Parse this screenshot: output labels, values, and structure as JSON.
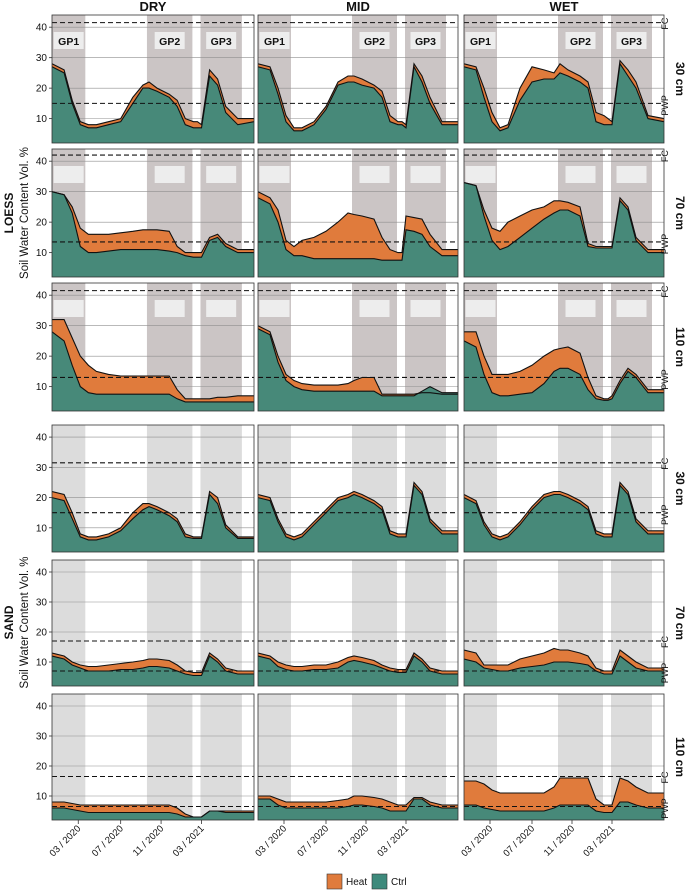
{
  "chart_data": {
    "type": "area",
    "ylabel": "Soil Water Content Vol. %",
    "columns": [
      "DRY",
      "MID",
      "WET"
    ],
    "soils": [
      {
        "name": "LOESS",
        "depths": [
          "30 cm",
          "70 cm",
          "110 cm"
        ]
      },
      {
        "name": "SAND",
        "depths": [
          "30 cm",
          "70 cm",
          "110 cm"
        ]
      }
    ],
    "x_ticks": [
      "03 / 2020",
      "07 / 2020",
      "11 / 2020",
      "03 / 2021"
    ],
    "y_ticks": [
      10,
      20,
      30,
      40
    ],
    "ylim": [
      2,
      44
    ],
    "grow_periods": [
      "GP1",
      "GP2",
      "GP3"
    ],
    "reference_labels": {
      "fc": "FC",
      "pwp": "PWP"
    },
    "legend": [
      {
        "name": "Heat",
        "color": "#e07b3c"
      },
      {
        "name": "Ctrl",
        "color": "#3e8a7c"
      }
    ],
    "reference_lines": {
      "LOESS": {
        "30 cm": {
          "fc": 41.5,
          "pwp": 15
        },
        "70 cm": {
          "fc": 42,
          "pwp": 13.5
        },
        "110 cm": {
          "fc": 41.5,
          "pwp": 13
        }
      },
      "SAND": {
        "30 cm": {
          "fc": 31.5,
          "pwp": 15
        },
        "70 cm": {
          "fc": 17,
          "pwp": 7
        },
        "110 cm": {
          "fc": 16.5,
          "pwp": 6.5
        }
      }
    },
    "time_points": [
      0,
      0.06,
      0.1,
      0.14,
      0.18,
      0.22,
      0.28,
      0.34,
      0.4,
      0.45,
      0.48,
      0.52,
      0.58,
      0.62,
      0.66,
      0.7,
      0.72,
      0.74,
      0.78,
      0.82,
      0.86,
      0.92,
      1.0
    ],
    "series": {
      "LOESS": {
        "30 cm": {
          "DRY": {
            "heat": [
              28,
              26,
              16,
              9,
              8,
              8,
              9,
              10,
              17,
              21,
              22,
              20,
              18,
              16,
              10,
              9,
              9,
              8,
              26,
              23,
              14,
              10,
              10
            ],
            "ctrl": [
              27,
              25,
              15,
              8,
              7,
              7,
              8,
              9,
              15,
              20,
              20,
              19,
              17,
              14,
              8,
              7,
              7,
              7,
              24,
              21,
              12,
              8,
              9
            ]
          },
          "MID": {
            "heat": [
              28,
              27,
              20,
              11,
              7,
              7,
              9,
              14,
              22,
              24,
              24,
              23,
              21,
              19,
              11,
              9,
              9,
              8,
              28,
              24,
              17,
              9,
              9
            ],
            "ctrl": [
              27,
              26,
              18,
              9,
              6,
              6,
              8,
              13,
              21,
              22,
              22,
              21,
              20,
              17,
              9,
              8,
              8,
              7,
              27,
              22,
              15,
              8,
              8
            ]
          },
          "WET": {
            "heat": [
              28,
              27,
              20,
              12,
              7,
              8,
              20,
              27,
              26,
              25,
              28,
              26,
              24,
              22,
              12,
              11,
              10,
              9,
              29,
              26,
              22,
              11,
              10
            ],
            "ctrl": [
              27,
              26,
              17,
              9,
              6,
              7,
              16,
              22,
              23,
              23,
              25,
              24,
              22,
              20,
              9,
              8,
              8,
              8,
              28,
              24,
              20,
              10,
              9
            ]
          }
        },
        "70 cm": {
          "DRY": {
            "heat": [
              30,
              29,
              25,
              18,
              16,
              16,
              16,
              16.5,
              17,
              17.5,
              17.5,
              17.5,
              17,
              12,
              10,
              10,
              10,
              10,
              15,
              16,
              13,
              11,
              11
            ],
            "ctrl": [
              30,
              29,
              23,
              12,
              10,
              10,
              10.5,
              11,
              11,
              11,
              11,
              11,
              10.5,
              10,
              9,
              8.5,
              8.5,
              8.5,
              14,
              15,
              12,
              10,
              10
            ]
          },
          "MID": {
            "heat": [
              30,
              28,
              24,
              14,
              12,
              14,
              15,
              17,
              20,
              23,
              22.5,
              22,
              21,
              15,
              11,
              10,
              10,
              22,
              21.5,
              21,
              16,
              11,
              11
            ],
            "ctrl": [
              28,
              26,
              20,
              11,
              9,
              9,
              8,
              8,
              8,
              8,
              8,
              8,
              8,
              7.5,
              7.5,
              7.5,
              7.5,
              17.5,
              17,
              16,
              12,
              9,
              9
            ]
          },
          "WET": {
            "heat": [
              33,
              32,
              24,
              18,
              17,
              20,
              22,
              24,
              25,
              27,
              27,
              26.5,
              25,
              13,
              12,
              12,
              12,
              12,
              28,
              25,
              15,
              11,
              11
            ],
            "ctrl": [
              33,
              32,
              22,
              14,
              11,
              12,
              15,
              18,
              21,
              23,
              24,
              24,
              22,
              12,
              11.5,
              11.5,
              11.5,
              11.5,
              27,
              24,
              14,
              10,
              10
            ]
          }
        },
        "110 cm": {
          "DRY": {
            "heat": [
              32,
              32,
              26,
              20,
              17,
              15,
              14,
              13.5,
              13.5,
              13.5,
              13.5,
              13.5,
              13.5,
              9,
              6,
              6,
              6,
              6,
              6,
              6.5,
              6.5,
              7,
              7
            ],
            "ctrl": [
              28,
              25,
              17,
              10,
              8,
              7.5,
              7.5,
              7.5,
              7.5,
              7.5,
              7.5,
              7.5,
              7.5,
              6,
              5,
              5,
              5,
              5,
              5,
              5,
              5,
              5,
              5
            ]
          },
          "MID": {
            "heat": [
              30,
              28,
              20,
              14,
              12,
              11,
              10.5,
              10.5,
              10.5,
              11,
              12,
              13,
              13,
              7.5,
              7.5,
              7.5,
              7.5,
              7.5,
              7.5,
              8,
              8,
              7.5,
              7.5
            ],
            "ctrl": [
              29,
              27,
              18,
              12,
              10,
              9,
              8.5,
              8.5,
              8.5,
              8.5,
              8.5,
              8.5,
              8.5,
              7,
              7,
              7,
              7,
              7,
              7,
              8.5,
              10,
              8,
              8
            ]
          },
          "WET": {
            "heat": [
              28,
              28,
              20,
              14,
              14,
              14,
              15,
              17,
              20,
              22,
              22.5,
              23,
              21,
              13,
              7,
              6,
              6,
              7,
              12,
              16,
              14,
              9,
              9
            ],
            "ctrl": [
              25,
              23,
              14,
              8,
              7,
              7,
              7.5,
              8,
              11,
              15,
              16,
              16,
              14,
              9,
              6,
              5.5,
              5.5,
              6,
              11,
              15,
              13,
              8,
              8
            ]
          }
        }
      },
      "SAND": {
        "30 cm": {
          "DRY": {
            "heat": [
              22,
              21,
              15,
              8,
              7,
              7,
              8,
              10,
              15,
              18,
              18,
              17,
              15,
              13,
              8,
              7,
              7,
              7,
              22,
              20,
              11,
              7,
              7
            ],
            "ctrl": [
              20,
              19,
              13,
              7,
              6,
              6,
              7,
              9,
              13,
              16,
              17,
              16,
              14,
              12,
              7,
              6.5,
              6.5,
              6.5,
              21,
              18,
              10,
              6.5,
              6.5
            ]
          },
          "MID": {
            "heat": [
              21,
              20,
              13,
              8,
              7,
              8,
              12,
              16,
              20,
              21,
              22,
              21,
              19,
              17,
              9,
              8,
              8,
              8,
              25,
              22,
              13,
              9,
              9
            ],
            "ctrl": [
              20,
              19,
              12,
              7,
              6,
              7,
              11,
              15,
              19,
              20,
              21,
              20,
              18,
              16,
              8,
              7,
              7,
              7,
              24,
              21,
              12,
              8,
              8
            ]
          },
          "WET": {
            "heat": [
              21,
              19,
              12,
              8,
              7,
              8,
              12,
              17,
              21,
              22,
              22,
              21,
              19,
              17,
              9,
              8,
              8,
              8,
              25,
              22,
              13,
              9,
              9
            ],
            "ctrl": [
              20,
              18,
              11,
              7,
              6,
              7,
              11,
              16,
              20,
              21,
              21,
              20,
              18,
              16,
              8,
              7,
              7,
              7,
              24,
              21,
              12,
              8,
              8
            ]
          }
        },
        "70 cm": {
          "DRY": {
            "heat": [
              13,
              12,
              10,
              9,
              8.5,
              8.5,
              9,
              9.5,
              10,
              10.5,
              11,
              11,
              10.5,
              9,
              7,
              6.5,
              6.5,
              6.5,
              13,
              11,
              8,
              7,
              7
            ],
            "ctrl": [
              12,
              11,
              9,
              8,
              7,
              7,
              7,
              7.5,
              7.5,
              8,
              8.5,
              8.5,
              8,
              7,
              6,
              5.5,
              5.5,
              5.5,
              12,
              10,
              7,
              6,
              6
            ]
          },
          "MID": {
            "heat": [
              13,
              12,
              10,
              9,
              8.5,
              8.5,
              9,
              9,
              10,
              11.5,
              12,
              11.5,
              10.5,
              9,
              8,
              7.5,
              7.5,
              7.5,
              13,
              11,
              8,
              7,
              7
            ],
            "ctrl": [
              12,
              11,
              8.5,
              7.5,
              7,
              7,
              7.5,
              7.5,
              8,
              10,
              10.5,
              10,
              9,
              8,
              7,
              6.5,
              6.5,
              6.5,
              12,
              10,
              7,
              6,
              6
            ]
          },
          "WET": {
            "heat": [
              14,
              13,
              9,
              9,
              9,
              9,
              11,
              12,
              13,
              14.5,
              14,
              14,
              13,
              12,
              8,
              7,
              7,
              7,
              14,
              12,
              10,
              8,
              8
            ],
            "ctrl": [
              11,
              10,
              8,
              7.5,
              7,
              7,
              8,
              8.5,
              9,
              10,
              10,
              10,
              9.5,
              9,
              7,
              6,
              6,
              6,
              12,
              10,
              8,
              7,
              7
            ]
          }
        },
        "110 cm": {
          "DRY": {
            "heat": [
              8,
              8,
              7.5,
              7,
              7,
              7,
              7,
              7,
              7,
              7,
              7,
              7,
              7,
              6,
              4,
              3,
              3,
              3,
              5,
              5,
              5,
              5,
              5
            ],
            "ctrl": [
              6,
              6,
              5.5,
              5,
              4.5,
              4.5,
              4.5,
              4.5,
              4.5,
              4.5,
              4.5,
              4.5,
              4.5,
              4,
              3,
              3,
              3,
              3,
              5,
              5,
              4.5,
              4.5,
              4.5
            ]
          },
          "MID": {
            "heat": [
              10,
              10,
              9,
              8,
              8,
              8,
              8,
              8,
              8.5,
              9,
              10,
              10,
              9.5,
              9,
              8,
              7,
              7,
              7,
              9.5,
              9.5,
              8,
              7,
              7
            ],
            "ctrl": [
              9,
              9,
              7,
              6,
              6,
              6,
              6,
              6,
              6,
              6.5,
              7,
              7,
              6.5,
              6,
              5,
              5,
              5,
              5,
              9,
              9,
              7,
              6,
              6
            ]
          },
          "WET": {
            "heat": [
              15,
              15,
              14,
              12,
              11,
              11,
              11,
              11,
              11,
              13,
              16,
              16,
              16,
              16,
              9,
              7,
              7,
              7,
              16,
              15,
              13,
              11,
              11
            ],
            "ctrl": [
              7,
              7,
              6,
              5.5,
              5,
              5,
              5,
              5,
              5,
              6,
              7,
              7,
              7,
              7,
              5,
              4.5,
              4.5,
              4.5,
              8,
              8,
              7,
              6,
              6
            ]
          }
        }
      }
    }
  }
}
